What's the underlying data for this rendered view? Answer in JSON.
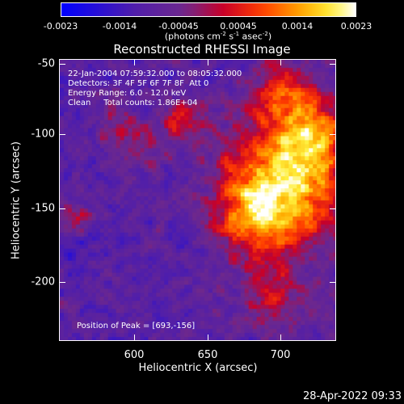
{
  "colorbar": {
    "ticks": [
      "-0.0023",
      "-0.0014",
      "-0.00045",
      "0.00045",
      "0.0014",
      "0.0023"
    ],
    "unit_prefix": "(photons cm",
    "unit_exp1": "-2",
    "unit_mid1": " s",
    "unit_exp2": "-1",
    "unit_mid2": " asec",
    "unit_exp3": "-2",
    "unit_suffix": ")"
  },
  "title": "Reconstructed RHESSI Image",
  "info": {
    "line1": "22-Jan-2004 07:59:32.000 to 08:05:32.000",
    "line2": "Detectors: 3F 4F 5F 6F 7F 8F  Att 0",
    "line3": "Energy Range: 6.0 - 12.0 keV",
    "line4": "Clean     Total counts: 1.86E+04",
    "peak": "Position of Peak = [693,-156]"
  },
  "axes": {
    "xlabel": "Heliocentric X (arcsec)",
    "ylabel": "Heliocentric Y (arcsec)",
    "xticks": [
      "600",
      "650",
      "700"
    ],
    "yticks": [
      "-50",
      "-100",
      "-150",
      "-200"
    ]
  },
  "footer": {
    "timestamp": "28-Apr-2022 09:33"
  },
  "colors": {
    "background": "#000000",
    "low": "#0000ff",
    "mid": "#ff0000",
    "high": "#ffffff"
  }
}
